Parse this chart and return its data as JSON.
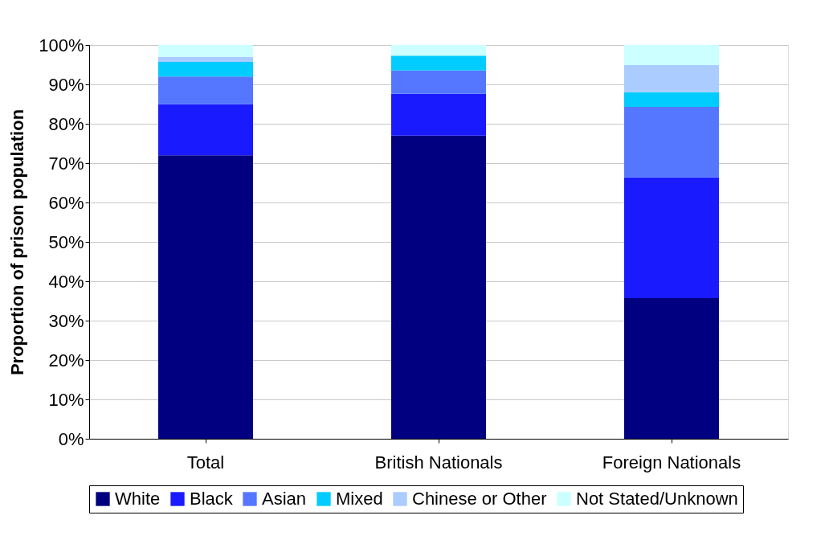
{
  "chart_data": {
    "type": "bar",
    "stacked": true,
    "ylabel": "Proportion of prison population",
    "categories": [
      "Total",
      "British Nationals",
      "Foreign Nationals"
    ],
    "series": [
      {
        "name": "White",
        "color": "#000080",
        "values": [
          72,
          77,
          35.7
        ]
      },
      {
        "name": "Black",
        "color": "#1a1aff",
        "values": [
          13,
          10.6,
          30.7
        ]
      },
      {
        "name": "Asian",
        "color": "#5577ff",
        "values": [
          7,
          5.9,
          17.9
        ]
      },
      {
        "name": "Mixed",
        "color": "#00ccff",
        "values": [
          3.7,
          3.8,
          3.7
        ]
      },
      {
        "name": "Chinese or Other",
        "color": "#aaccff",
        "values": [
          1.3,
          0,
          6.9
        ]
      },
      {
        "name": "Not Stated/Unknown",
        "color": "#ccffff",
        "values": [
          3,
          2.7,
          5.1
        ]
      }
    ],
    "ylim": [
      0,
      100
    ],
    "yticks": [
      {
        "value": 0,
        "label": "0%"
      },
      {
        "value": 10,
        "label": "10%"
      },
      {
        "value": 20,
        "label": "20%"
      },
      {
        "value": 30,
        "label": "30%"
      },
      {
        "value": 40,
        "label": "40%"
      },
      {
        "value": 50,
        "label": "50%"
      },
      {
        "value": 60,
        "label": "60%"
      },
      {
        "value": 70,
        "label": "70%"
      },
      {
        "value": 80,
        "label": "80%"
      },
      {
        "value": 90,
        "label": "90%"
      },
      {
        "value": 100,
        "label": "100%"
      }
    ],
    "grid": "y",
    "legend": "bottom"
  }
}
